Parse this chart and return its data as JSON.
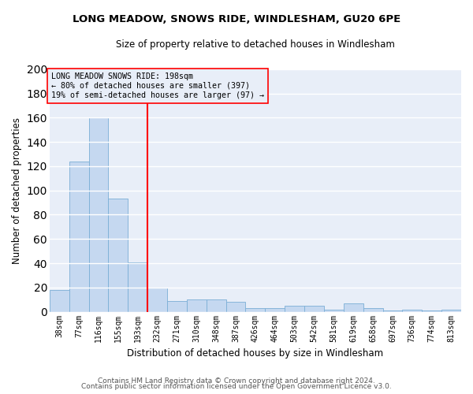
{
  "title1": "LONG MEADOW, SNOWS RIDE, WINDLESHAM, GU20 6PE",
  "title2": "Size of property relative to detached houses in Windlesham",
  "xlabel": "Distribution of detached houses by size in Windlesham",
  "ylabel": "Number of detached properties",
  "categories": [
    "38sqm",
    "77sqm",
    "116sqm",
    "155sqm",
    "193sqm",
    "232sqm",
    "271sqm",
    "310sqm",
    "348sqm",
    "387sqm",
    "426sqm",
    "464sqm",
    "503sqm",
    "542sqm",
    "581sqm",
    "619sqm",
    "658sqm",
    "697sqm",
    "736sqm",
    "774sqm",
    "813sqm"
  ],
  "values": [
    18,
    124,
    160,
    93,
    41,
    20,
    9,
    10,
    10,
    8,
    3,
    3,
    5,
    5,
    2,
    7,
    3,
    1,
    2,
    1,
    2
  ],
  "bar_color": "#c5d8f0",
  "bar_edge_color": "#7aaed6",
  "red_line_x": 4.5,
  "annotation_line1": "LONG MEADOW SNOWS RIDE: 198sqm",
  "annotation_line2": "← 80% of detached houses are smaller (397)",
  "annotation_line3": "19% of semi-detached houses are larger (97) →",
  "ylim": [
    0,
    200
  ],
  "yticks": [
    0,
    20,
    40,
    60,
    80,
    100,
    120,
    140,
    160,
    180,
    200
  ],
  "footer1": "Contains HM Land Registry data © Crown copyright and database right 2024.",
  "footer2": "Contains public sector information licensed under the Open Government Licence v3.0.",
  "plot_bg_color": "#e8eef8",
  "fig_bg_color": "#ffffff",
  "grid_color": "#ffffff",
  "ann_bg_color": "#e8eef8"
}
